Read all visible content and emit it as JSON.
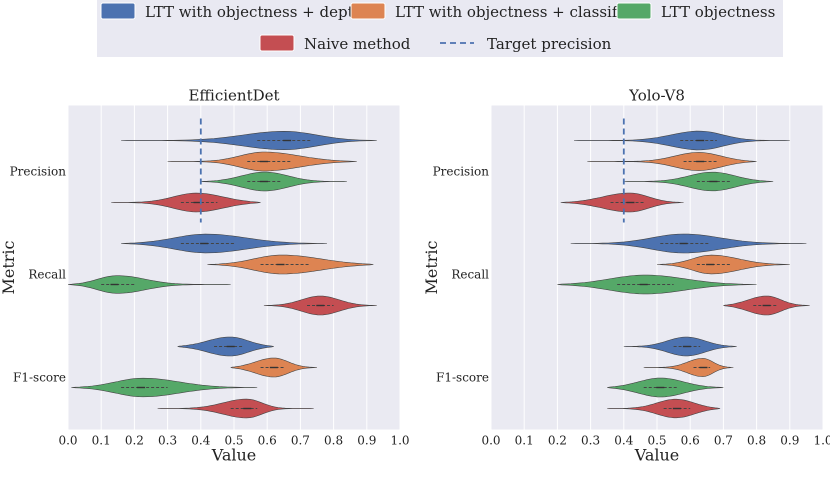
{
  "chart_data": [
    {
      "type": "violin",
      "title": "EfficientDet",
      "xlabel": "Value",
      "ylabel": "Metric",
      "xlim": [
        0.0,
        1.0
      ],
      "xticks": [
        0.0,
        0.1,
        0.2,
        0.3,
        0.4,
        0.5,
        0.6,
        0.7,
        0.8,
        0.9,
        1.0
      ],
      "categories": [
        "Precision",
        "Recall",
        "F1-score"
      ],
      "target_precision": 0.4,
      "grid": true,
      "series": [
        {
          "name": "LTT with objectness + depth",
          "values": [
            {
              "metric": "Precision",
              "min": 0.16,
              "q1": 0.57,
              "median": 0.66,
              "q3": 0.73,
              "max": 0.93
            },
            {
              "metric": "Recall",
              "min": 0.16,
              "q1": 0.34,
              "median": 0.41,
              "q3": 0.5,
              "max": 0.78
            },
            {
              "metric": "F1-score",
              "min": 0.33,
              "q1": 0.44,
              "median": 0.49,
              "q3": 0.53,
              "max": 0.62
            }
          ]
        },
        {
          "name": "LTT with objectness + classif",
          "values": [
            {
              "metric": "Precision",
              "min": 0.3,
              "q1": 0.54,
              "median": 0.59,
              "q3": 0.67,
              "max": 0.87
            },
            {
              "metric": "Recall",
              "min": 0.42,
              "q1": 0.58,
              "median": 0.64,
              "q3": 0.73,
              "max": 0.92
            },
            {
              "metric": "F1-score",
              "min": 0.49,
              "q1": 0.58,
              "median": 0.62,
              "q3": 0.65,
              "max": 0.75
            }
          ]
        },
        {
          "name": "LTT objectness",
          "values": [
            {
              "metric": "Precision",
              "min": 0.4,
              "q1": 0.54,
              "median": 0.59,
              "q3": 0.64,
              "max": 0.84
            },
            {
              "metric": "Recall",
              "min": 0.0,
              "q1": 0.1,
              "median": 0.14,
              "q3": 0.2,
              "max": 0.49
            },
            {
              "metric": "F1-score",
              "min": 0.01,
              "q1": 0.16,
              "median": 0.22,
              "q3": 0.3,
              "max": 0.57
            }
          ]
        },
        {
          "name": "Naive method",
          "values": [
            {
              "metric": "Precision",
              "min": 0.13,
              "q1": 0.34,
              "median": 0.39,
              "q3": 0.45,
              "max": 0.58
            },
            {
              "metric": "Recall",
              "min": 0.59,
              "q1": 0.72,
              "median": 0.76,
              "q3": 0.8,
              "max": 0.93
            },
            {
              "metric": "F1-score",
              "min": 0.27,
              "q1": 0.49,
              "median": 0.54,
              "q3": 0.57,
              "max": 0.74
            }
          ]
        }
      ]
    },
    {
      "type": "violin",
      "title": "Yolo-V8",
      "xlabel": "Value",
      "ylabel": "Metric",
      "xlim": [
        0.0,
        1.0
      ],
      "xticks": [
        0.0,
        0.1,
        0.2,
        0.3,
        0.4,
        0.5,
        0.6,
        0.7,
        0.8,
        0.9,
        1.0
      ],
      "categories": [
        "Precision",
        "Recall",
        "F1-score"
      ],
      "target_precision": 0.4,
      "grid": true,
      "series": [
        {
          "name": "LTT with objectness + depth",
          "values": [
            {
              "metric": "Precision",
              "min": 0.25,
              "q1": 0.57,
              "median": 0.63,
              "q3": 0.68,
              "max": 0.9
            },
            {
              "metric": "Recall",
              "min": 0.24,
              "q1": 0.51,
              "median": 0.58,
              "q3": 0.66,
              "max": 0.95
            },
            {
              "metric": "F1-score",
              "min": 0.4,
              "q1": 0.55,
              "median": 0.59,
              "q3": 0.63,
              "max": 0.74
            }
          ]
        },
        {
          "name": "LTT with objectness + classif",
          "values": [
            {
              "metric": "Precision",
              "min": 0.29,
              "q1": 0.58,
              "median": 0.63,
              "q3": 0.68,
              "max": 0.8
            },
            {
              "metric": "Recall",
              "min": 0.5,
              "q1": 0.62,
              "median": 0.66,
              "q3": 0.72,
              "max": 0.9
            },
            {
              "metric": "F1-score",
              "min": 0.46,
              "q1": 0.61,
              "median": 0.64,
              "q3": 0.66,
              "max": 0.73
            }
          ]
        },
        {
          "name": "LTT objectness",
          "values": [
            {
              "metric": "Precision",
              "min": 0.4,
              "q1": 0.62,
              "median": 0.67,
              "q3": 0.72,
              "max": 0.85
            },
            {
              "metric": "Recall",
              "min": 0.2,
              "q1": 0.38,
              "median": 0.46,
              "q3": 0.55,
              "max": 0.8
            },
            {
              "metric": "F1-score",
              "min": 0.35,
              "q1": 0.46,
              "median": 0.51,
              "q3": 0.56,
              "max": 0.7
            }
          ]
        },
        {
          "name": "Naive method",
          "values": [
            {
              "metric": "Precision",
              "min": 0.21,
              "q1": 0.36,
              "median": 0.42,
              "q3": 0.46,
              "max": 0.58
            },
            {
              "metric": "Recall",
              "min": 0.7,
              "q1": 0.79,
              "median": 0.83,
              "q3": 0.86,
              "max": 0.96
            },
            {
              "metric": "F1-score",
              "min": 0.35,
              "q1": 0.52,
              "median": 0.56,
              "q3": 0.6,
              "max": 0.69
            }
          ]
        }
      ]
    }
  ],
  "legend": {
    "items": [
      {
        "label": "LTT with objectness + depth",
        "color": "#4c72b0",
        "marker": "patch"
      },
      {
        "label": "LTT with objectness + classif",
        "color": "#dd8452",
        "marker": "patch"
      },
      {
        "label": "LTT objectness",
        "color": "#55a868",
        "marker": "patch"
      },
      {
        "label": "Naive method",
        "color": "#c44e52",
        "marker": "patch"
      },
      {
        "label": "Target precision",
        "color": "#4c72b0",
        "marker": "dashed-line"
      }
    ]
  }
}
